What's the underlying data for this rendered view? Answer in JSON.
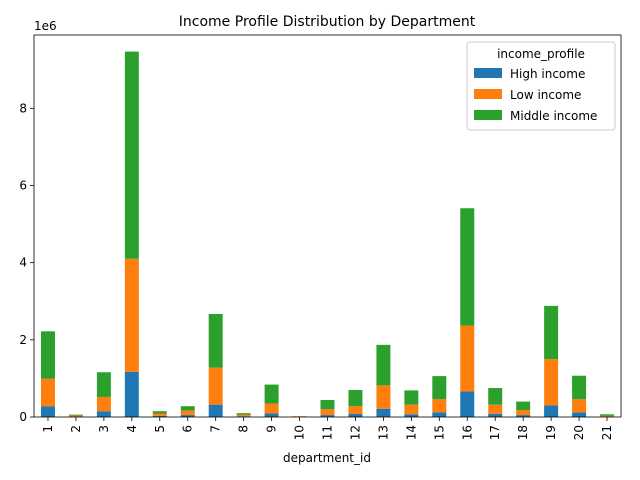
{
  "chart_data": {
    "type": "bar",
    "stacked": true,
    "title": "Income Profile Distribution by Department",
    "xlabel": "department_id",
    "ylabel": "",
    "y_multiplier_label": "1e6",
    "ylim": [
      0,
      9.9
    ],
    "yticks": [
      0,
      2,
      4,
      6,
      8
    ],
    "grid": false,
    "legend": {
      "title": "income_profile",
      "placement": "top-right"
    },
    "categories": [
      "1",
      "2",
      "3",
      "4",
      "5",
      "6",
      "7",
      "8",
      "9",
      "10",
      "11",
      "12",
      "13",
      "14",
      "15",
      "16",
      "17",
      "18",
      "19",
      "20",
      "21"
    ],
    "series": [
      {
        "name": "High income",
        "color": "#1f77b4",
        "values": [
          0.28,
          0.01,
          0.15,
          1.17,
          0.03,
          0.05,
          0.32,
          0.02,
          0.09,
          0.0,
          0.05,
          0.08,
          0.21,
          0.07,
          0.12,
          0.66,
          0.08,
          0.05,
          0.3,
          0.12,
          0.01
        ]
      },
      {
        "name": "Low income",
        "color": "#ff7f0e",
        "values": [
          0.71,
          0.03,
          0.37,
          2.93,
          0.06,
          0.12,
          0.96,
          0.04,
          0.26,
          0.02,
          0.15,
          0.2,
          0.61,
          0.25,
          0.34,
          1.71,
          0.24,
          0.13,
          1.2,
          0.34,
          0.02
        ]
      },
      {
        "name": "Middle income",
        "color": "#2ca02c",
        "values": [
          1.23,
          0.02,
          0.64,
          5.37,
          0.06,
          0.11,
          1.39,
          0.04,
          0.49,
          0.0,
          0.24,
          0.42,
          1.05,
          0.37,
          0.6,
          3.04,
          0.43,
          0.22,
          1.38,
          0.61,
          0.04
        ]
      }
    ]
  }
}
